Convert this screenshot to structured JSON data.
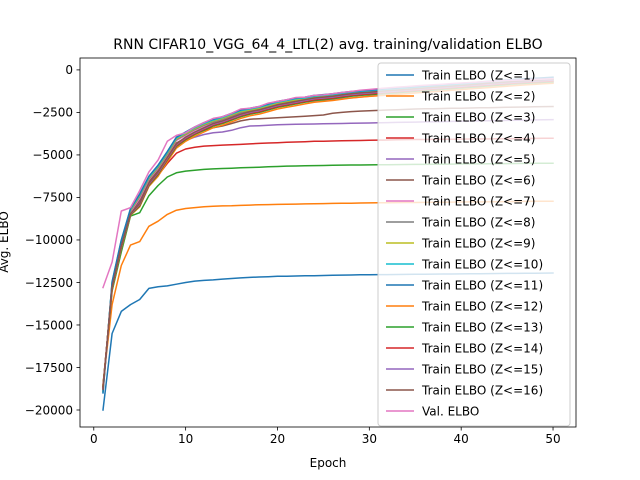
{
  "chart_data": {
    "type": "line",
    "title": "RNN CIFAR10_VGG_64_4_LTL(2) avg. training/validation ELBO",
    "xlabel": "Epoch",
    "ylabel": "Avg. ELBO",
    "xlim": [
      -1.5,
      52.5
    ],
    "ylim": [
      -21000,
      700
    ],
    "xticks": [
      0,
      10,
      20,
      30,
      40,
      50
    ],
    "xtick_labels": [
      "0",
      "10",
      "20",
      "30",
      "40",
      "50"
    ],
    "yticks": [
      0,
      -2500,
      -5000,
      -7500,
      -10000,
      -12500,
      -15000,
      -17500,
      -20000
    ],
    "ytick_labels": [
      "0",
      "−2500",
      "−5000",
      "−7500",
      "−10000",
      "−12500",
      "−15000",
      "−17500",
      "−20000"
    ],
    "grid": false,
    "legend_position": "right",
    "x": [
      1,
      2,
      3,
      4,
      5,
      6,
      7,
      8,
      9,
      10,
      11,
      12,
      13,
      14,
      15,
      16,
      17,
      18,
      19,
      20,
      21,
      22,
      23,
      24,
      25,
      26,
      27,
      28,
      29,
      30,
      31,
      32,
      33,
      34,
      35,
      36,
      37,
      38,
      39,
      40,
      41,
      42,
      43,
      44,
      45,
      46,
      47,
      48,
      49,
      50
    ],
    "series": [
      {
        "name": "Train ELBO (Z<=1)",
        "color": "#1f77b4",
        "values": [
          -20000,
          -15500,
          -14200,
          -13800,
          -13500,
          -12850,
          -12750,
          -12700,
          -12600,
          -12500,
          -12420,
          -12380,
          -12350,
          -12300,
          -12270,
          -12230,
          -12200,
          -12180,
          -12160,
          -12140,
          -12130,
          -12120,
          -12110,
          -12100,
          -12090,
          -12080,
          -12070,
          -12060,
          -12050,
          -12045,
          -12040,
          -12035,
          -12030,
          -12025,
          -12020,
          -12015,
          -12010,
          -12005,
          -12000,
          -11995,
          -11990,
          -11985,
          -11980,
          -11975,
          -11970,
          -11965,
          -11960,
          -11955,
          -11950,
          -11945
        ]
      },
      {
        "name": "Train ELBO (Z<=2)",
        "color": "#ff7f0e",
        "values": [
          -18500,
          -13800,
          -11500,
          -10300,
          -10100,
          -9200,
          -8900,
          -8500,
          -8250,
          -8150,
          -8100,
          -8050,
          -8020,
          -8000,
          -7990,
          -7970,
          -7950,
          -7930,
          -7920,
          -7910,
          -7900,
          -7890,
          -7880,
          -7870,
          -7860,
          -7850,
          -7845,
          -7840,
          -7830,
          -7820,
          -7815,
          -7810,
          -7805,
          -7800,
          -7795,
          -7790,
          -7785,
          -7780,
          -7775,
          -7770,
          -7765,
          -7760,
          -7755,
          -7750,
          -7745,
          -7740,
          -7735,
          -7730,
          -7725,
          -7720
        ]
      },
      {
        "name": "Train ELBO (Z<=3)",
        "color": "#2ca02c",
        "values": [
          -18600,
          -13000,
          -10700,
          -8600,
          -8400,
          -7400,
          -6800,
          -6300,
          -6050,
          -5950,
          -5900,
          -5850,
          -5820,
          -5800,
          -5780,
          -5760,
          -5740,
          -5720,
          -5700,
          -5680,
          -5660,
          -5650,
          -5640,
          -5630,
          -5620,
          -5610,
          -5600,
          -5595,
          -5590,
          -5585,
          -5580,
          -5575,
          -5570,
          -5565,
          -5560,
          -5555,
          -5550,
          -5545,
          -5540,
          -5535,
          -5530,
          -5525,
          -5520,
          -5515,
          -5510,
          -5505,
          -5500,
          -5495,
          -5490,
          -5485
        ]
      },
      {
        "name": "Train ELBO (Z<=4)",
        "color": "#d62728",
        "values": [
          -18650,
          -12800,
          -10400,
          -8500,
          -7900,
          -6800,
          -6200,
          -5500,
          -4900,
          -4650,
          -4550,
          -4480,
          -4450,
          -4420,
          -4400,
          -4380,
          -4350,
          -4320,
          -4300,
          -4280,
          -4260,
          -4240,
          -4220,
          -4200,
          -4190,
          -4180,
          -4170,
          -4160,
          -4150,
          -4140,
          -4130,
          -4120,
          -4110,
          -4100,
          -4095,
          -4090,
          -4085,
          -4080,
          -4075,
          -4070,
          -4065,
          -4060,
          -4055,
          -4050,
          -4045,
          -4040,
          -4035,
          -4030,
          -4025,
          -4020
        ]
      },
      {
        "name": "Train ELBO (Z<=5)",
        "color": "#9467bd",
        "values": [
          -18700,
          -12750,
          -10300,
          -8450,
          -7750,
          -6650,
          -6000,
          -5200,
          -4400,
          -4150,
          -3950,
          -3800,
          -3700,
          -3650,
          -3550,
          -3400,
          -3300,
          -3280,
          -3250,
          -3230,
          -3210,
          -3200,
          -3190,
          -3180,
          -3170,
          -3160,
          -3150,
          -3140,
          -3130,
          -3120,
          -3110,
          -3100,
          -3090,
          -3080,
          -3070,
          -3060,
          -3050,
          -3040,
          -3030,
          -3020,
          -3010,
          -3000,
          -2990,
          -2980,
          -2970,
          -2960,
          -2950,
          -2940,
          -2930,
          -2920
        ]
      },
      {
        "name": "Train ELBO (Z<=6)",
        "color": "#8c564b",
        "values": [
          -18750,
          -12700,
          -10250,
          -8400,
          -7650,
          -6550,
          -5900,
          -5100,
          -4300,
          -4000,
          -3750,
          -3550,
          -3400,
          -3300,
          -3150,
          -3000,
          -2900,
          -2870,
          -2840,
          -2810,
          -2780,
          -2750,
          -2720,
          -2690,
          -2650,
          -2550,
          -2500,
          -2450,
          -2420,
          -2400,
          -2380,
          -2360,
          -2340,
          -2320,
          -2300,
          -2290,
          -2280,
          -2270,
          -2260,
          -2250,
          -2240,
          -2230,
          -2220,
          -2210,
          -2200,
          -2190,
          -2180,
          -2170,
          -2160,
          -2150
        ]
      },
      {
        "name": "Train ELBO (Z<=7)",
        "color": "#e377c2",
        "values": [
          -18800,
          -12650,
          -10200,
          -8350,
          -7550,
          -6450,
          -5800,
          -5000,
          -4150,
          -3850,
          -3550,
          -3300,
          -3100,
          -2950,
          -2750,
          -2550,
          -2450,
          -2350,
          -2200,
          -2080,
          -2000,
          -1920,
          -1880,
          -1850,
          -1800,
          -1760,
          -1700,
          -1650,
          -1600,
          -1550,
          -1500,
          -1460,
          -1420,
          -1380,
          -1340,
          -1300,
          -1260,
          -1220,
          -1180,
          -1140,
          -1100,
          -1060,
          -1020,
          -980,
          -940,
          -900,
          -860,
          -820,
          -790,
          -760
        ]
      },
      {
        "name": "Train ELBO (Z<=8)",
        "color": "#7f7f7f",
        "values": [
          -18850,
          -12600,
          -10150,
          -8300,
          -7450,
          -6400,
          -5750,
          -4950,
          -4100,
          -3800,
          -3500,
          -3250,
          -3050,
          -2900,
          -2700,
          -2500,
          -2400,
          -2300,
          -2150,
          -2000,
          -1900,
          -1800,
          -1750,
          -1650,
          -1600,
          -1550,
          -1480,
          -1420,
          -1380,
          -1340,
          -1300,
          -1260,
          -1220,
          -1180,
          -1140,
          -1100,
          -1060,
          -1020,
          -980,
          -940,
          -900,
          -860,
          -820,
          -780,
          -740,
          -700,
          -670,
          -640,
          -610,
          -580
        ]
      },
      {
        "name": "Train ELBO (Z<=9)",
        "color": "#bcbd22",
        "values": [
          -18900,
          -12550,
          -10100,
          -8250,
          -7400,
          -6350,
          -5700,
          -4900,
          -4050,
          -3750,
          -3450,
          -3200,
          -3000,
          -2850,
          -2650,
          -2450,
          -2350,
          -2250,
          -2100,
          -1950,
          -1850,
          -1750,
          -1700,
          -1600,
          -1550,
          -1500,
          -1430,
          -1370,
          -1330,
          -1290,
          -1250,
          -1210,
          -1170,
          -1130,
          -1090,
          -1050,
          -1010,
          -970,
          -930,
          -890,
          -850,
          -810,
          -770,
          -730,
          -690,
          -650,
          -620,
          -590,
          -560,
          -530
        ]
      },
      {
        "name": "Train ELBO (Z<=10)",
        "color": "#17becf",
        "values": [
          -18950,
          -12500,
          -10050,
          -8200,
          -7350,
          -6300,
          -5650,
          -4850,
          -4000,
          -3700,
          -3400,
          -3150,
          -2950,
          -2800,
          -2600,
          -2400,
          -2300,
          -2200,
          -2050,
          -1900,
          -1800,
          -1700,
          -1650,
          -1550,
          -1500,
          -1450,
          -1380,
          -1320,
          -1280,
          -1240,
          -1200,
          -1160,
          -1120,
          -1080,
          -1040,
          -1000,
          -960,
          -920,
          -880,
          -840,
          -800,
          -760,
          -720,
          -680,
          -640,
          -600,
          -570,
          -540,
          -510,
          -480
        ]
      },
      {
        "name": "Train ELBO (Z<=11)",
        "color": "#1f77b4",
        "values": [
          -19000,
          -12450,
          -10000,
          -8150,
          -7300,
          -6250,
          -5600,
          -4800,
          -3950,
          -3650,
          -3350,
          -3100,
          -2900,
          -2750,
          -2550,
          -2350,
          -2250,
          -2150,
          -2000,
          -1850,
          -1750,
          -1650,
          -1600,
          -1500,
          -1450,
          -1400,
          -1330,
          -1270,
          -1230,
          -1190,
          -1150,
          -1110,
          -1070,
          -1030,
          -990,
          -950,
          -910,
          -870,
          -830,
          -790,
          -750,
          -710,
          -670,
          -630,
          -590,
          -550,
          -520,
          -490,
          -460,
          -430
        ]
      },
      {
        "name": "Train ELBO (Z<=12)",
        "color": "#ff7f0e",
        "values": [
          -18550,
          -12900,
          -10500,
          -8550,
          -8050,
          -6850,
          -6250,
          -5400,
          -4600,
          -4200,
          -3900,
          -3650,
          -3400,
          -3250,
          -3050,
          -2850,
          -2700,
          -2600,
          -2450,
          -2300,
          -2200,
          -2100,
          -2000,
          -1900,
          -1850,
          -1800,
          -1720,
          -1650,
          -1600,
          -1560,
          -1520,
          -1480,
          -1440,
          -1400,
          -1360,
          -1320,
          -1280,
          -1240,
          -1200,
          -1160,
          -1120,
          -1080,
          -1040,
          -1000,
          -960,
          -920,
          -880,
          -850,
          -820,
          -790
        ]
      },
      {
        "name": "Train ELBO (Z<=13)",
        "color": "#2ca02c",
        "values": [
          -18620,
          -12850,
          -10450,
          -8520,
          -8000,
          -6800,
          -6150,
          -5300,
          -4500,
          -4100,
          -3800,
          -3550,
          -3300,
          -3150,
          -2950,
          -2750,
          -2600,
          -2500,
          -2350,
          -2200,
          -2100,
          -2000,
          -1900,
          -1800,
          -1750,
          -1700,
          -1620,
          -1550,
          -1500,
          -1460,
          -1420,
          -1380,
          -1340,
          -1300,
          -1260,
          -1220,
          -1180,
          -1140,
          -1100,
          -1060,
          -1020,
          -980,
          -940,
          -900,
          -860,
          -820,
          -790,
          -760,
          -730,
          -700
        ]
      },
      {
        "name": "Train ELBO (Z<=14)",
        "color": "#d62728",
        "values": [
          -18680,
          -12820,
          -10420,
          -8500,
          -7950,
          -6750,
          -6100,
          -5250,
          -4450,
          -4050,
          -3750,
          -3500,
          -3250,
          -3100,
          -2900,
          -2700,
          -2550,
          -2450,
          -2300,
          -2150,
          -2050,
          -1950,
          -1850,
          -1750,
          -1700,
          -1650,
          -1570,
          -1500,
          -1450,
          -1410,
          -1370,
          -1330,
          -1290,
          -1250,
          -1210,
          -1170,
          -1130,
          -1090,
          -1050,
          -1010,
          -970,
          -930,
          -890,
          -850,
          -810,
          -770,
          -740,
          -710,
          -680,
          -650
        ]
      },
      {
        "name": "Train ELBO (Z<=15)",
        "color": "#9467bd",
        "values": [
          -18720,
          -12780,
          -10380,
          -8480,
          -7900,
          -6700,
          -6050,
          -5200,
          -4400,
          -4000,
          -3700,
          -3450,
          -3200,
          -3050,
          -2850,
          -2650,
          -2500,
          -2400,
          -2250,
          -2100,
          -2000,
          -1900,
          -1800,
          -1700,
          -1650,
          -1600,
          -1520,
          -1450,
          -1400,
          -1360,
          -1320,
          -1280,
          -1240,
          -1200,
          -1160,
          -1120,
          -1080,
          -1040,
          -1000,
          -960,
          -920,
          -880,
          -840,
          -800,
          -760,
          -720,
          -690,
          -660,
          -630,
          -600
        ]
      },
      {
        "name": "Train ELBO (Z<=16)",
        "color": "#8c564b",
        "values": [
          -18780,
          -12760,
          -10350,
          -8460,
          -7850,
          -6650,
          -6000,
          -5150,
          -4350,
          -3950,
          -3650,
          -3400,
          -3150,
          -3000,
          -2800,
          -2600,
          -2450,
          -2350,
          -2200,
          -2050,
          -1950,
          -1850,
          -1750,
          -1650,
          -1600,
          -1550,
          -1470,
          -1400,
          -1350,
          -1310,
          -1270,
          -1230,
          -1190,
          -1150,
          -1110,
          -1070,
          -1030,
          -990,
          -950,
          -910,
          -870,
          -830,
          -790,
          -750,
          -710,
          -670,
          -640,
          -610,
          -580,
          -550
        ]
      },
      {
        "name": "Val. ELBO",
        "color": "#e377c2",
        "values": [
          -12800,
          -11300,
          -8300,
          -8100,
          -7100,
          -6000,
          -5300,
          -4200,
          -3850,
          -3700,
          -3350,
          -3100,
          -2850,
          -2750,
          -2550,
          -2300,
          -2250,
          -2150,
          -1950,
          -1850,
          -1750,
          -1620,
          -1600,
          -1500,
          -1470,
          -1400,
          -1330,
          -1270,
          -1200,
          -1150,
          -1100,
          -1060,
          -1010,
          -980,
          -940,
          -900,
          -870,
          -840,
          -800,
          -770,
          -740,
          -710,
          -680,
          -650,
          -620,
          -600,
          -580,
          -560,
          -540,
          -520
        ]
      }
    ]
  }
}
